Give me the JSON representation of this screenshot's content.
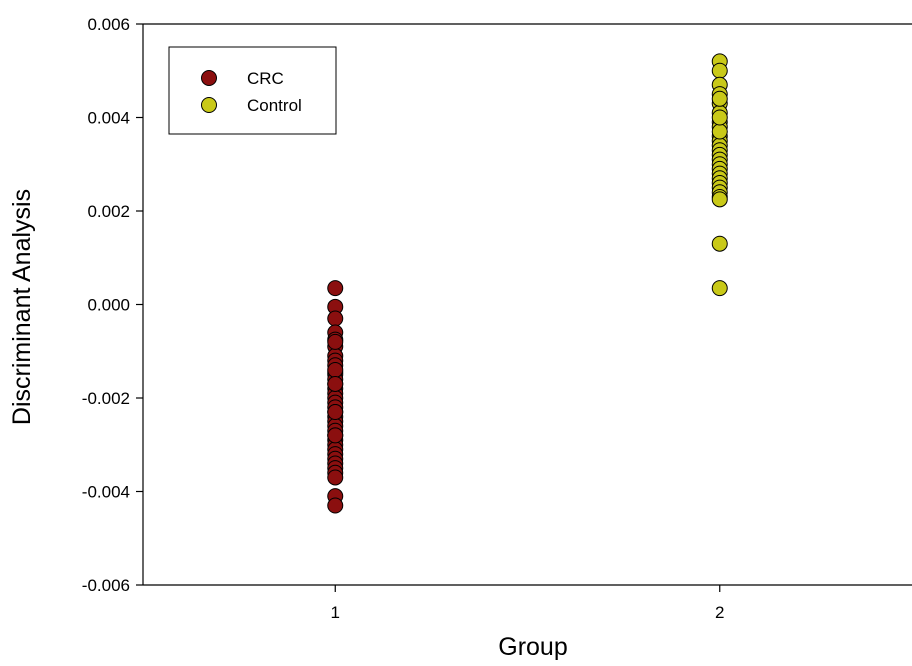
{
  "chart_data": {
    "type": "scatter",
    "title": "",
    "xlabel": "Group",
    "ylabel": "Discriminant Analysis",
    "xlim": [
      0.5,
      2.5
    ],
    "ylim": [
      -0.006,
      0.006
    ],
    "x_ticks": [
      1,
      2
    ],
    "x_tick_labels": [
      "1",
      "2"
    ],
    "y_ticks": [
      -0.006,
      -0.004,
      -0.002,
      0.0,
      0.002,
      0.004,
      0.006
    ],
    "y_tick_labels": [
      "-0.006",
      "-0.004",
      "-0.002",
      "0.000",
      "0.002",
      "0.004",
      "0.006"
    ],
    "grid": false,
    "legend_position": "top-left",
    "series": [
      {
        "name": "CRC",
        "color": "#8b0f0f",
        "x": [
          1,
          1,
          1,
          1,
          1,
          1,
          1,
          1,
          1,
          1,
          1,
          1,
          1,
          1,
          1,
          1,
          1,
          1,
          1,
          1,
          1,
          1,
          1,
          1,
          1,
          1,
          1,
          1,
          1,
          1,
          1,
          1,
          1,
          1,
          1,
          1,
          1,
          1,
          1,
          1
        ],
        "y": [
          0.00035,
          -5e-05,
          -0.0003,
          -0.0006,
          -0.00075,
          -0.0009,
          -0.0011,
          -0.0012,
          -0.0013,
          -0.00145,
          -0.0015,
          -0.0016,
          -0.0017,
          -0.0018,
          -0.0019,
          -0.002,
          -0.0021,
          -0.0022,
          -0.0023,
          -0.0024,
          -0.0025,
          -0.0026,
          -0.0027,
          -0.0028,
          -0.0029,
          -0.003,
          -0.0031,
          -0.0032,
          -0.0033,
          -0.0034,
          -0.0035,
          -0.0036,
          -0.0037,
          -0.0041,
          -0.0043,
          -0.0014,
          -0.0017,
          -0.0023,
          -0.0028,
          -0.0008
        ]
      },
      {
        "name": "Control",
        "color": "#c9c918",
        "x": [
          2,
          2,
          2,
          2,
          2,
          2,
          2,
          2,
          2,
          2,
          2,
          2,
          2,
          2,
          2,
          2,
          2,
          2,
          2,
          2,
          2,
          2,
          2,
          2,
          2,
          2,
          2,
          2
        ],
        "y": [
          0.0052,
          0.005,
          0.0047,
          0.0045,
          0.0043,
          0.0041,
          0.0039,
          0.0038,
          0.0036,
          0.0035,
          0.0034,
          0.0033,
          0.0032,
          0.0031,
          0.003,
          0.0029,
          0.0028,
          0.0027,
          0.0026,
          0.0025,
          0.0024,
          0.0023,
          0.00225,
          0.0013,
          0.00035,
          0.0037,
          0.004,
          0.0044
        ]
      }
    ]
  }
}
